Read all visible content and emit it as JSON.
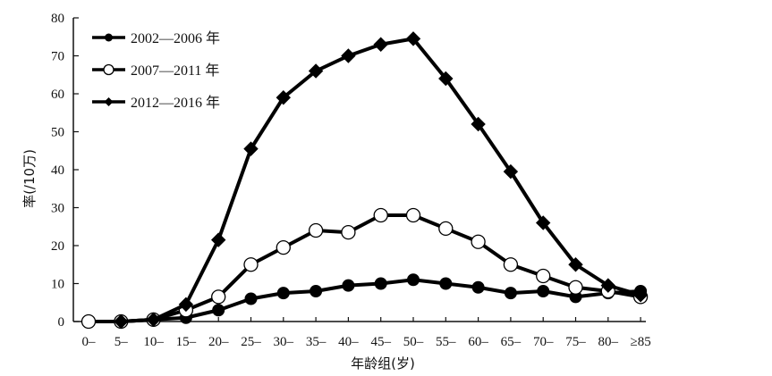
{
  "chart_data": {
    "type": "line",
    "xlabel": "年龄组(岁)",
    "ylabel": "率(/10万)",
    "ylim": [
      0,
      80
    ],
    "yticks": [
      0,
      10,
      20,
      30,
      40,
      50,
      60,
      70,
      80
    ],
    "grid": false,
    "legend_position": "top-left",
    "categories": [
      "0–",
      "5–",
      "10–",
      "15–",
      "20–",
      "25–",
      "30–",
      "35–",
      "40–",
      "45–",
      "50–",
      "55–",
      "60–",
      "65–",
      "70–",
      "75–",
      "80–",
      "≥85"
    ],
    "series": [
      {
        "name": "2002—2006 年",
        "marker": "filled-circle",
        "values": [
          null,
          0,
          0.5,
          1,
          3,
          6,
          7.5,
          8,
          9.5,
          10,
          11,
          10,
          9,
          7.5,
          8,
          6.5,
          7.5,
          8
        ]
      },
      {
        "name": "2007—2011 年",
        "marker": "open-circle",
        "values": [
          0,
          0,
          0.5,
          3,
          6.5,
          15,
          19.5,
          24,
          23.5,
          28,
          28,
          24.5,
          21,
          15,
          12,
          9,
          8,
          6.5
        ]
      },
      {
        "name": "2012—2016 年",
        "marker": "filled-diamond",
        "values": [
          null,
          0,
          0.5,
          4.5,
          21.5,
          45.5,
          59,
          66,
          70,
          73,
          74.5,
          64,
          52,
          39.5,
          26,
          15,
          9.5,
          7
        ]
      }
    ]
  }
}
